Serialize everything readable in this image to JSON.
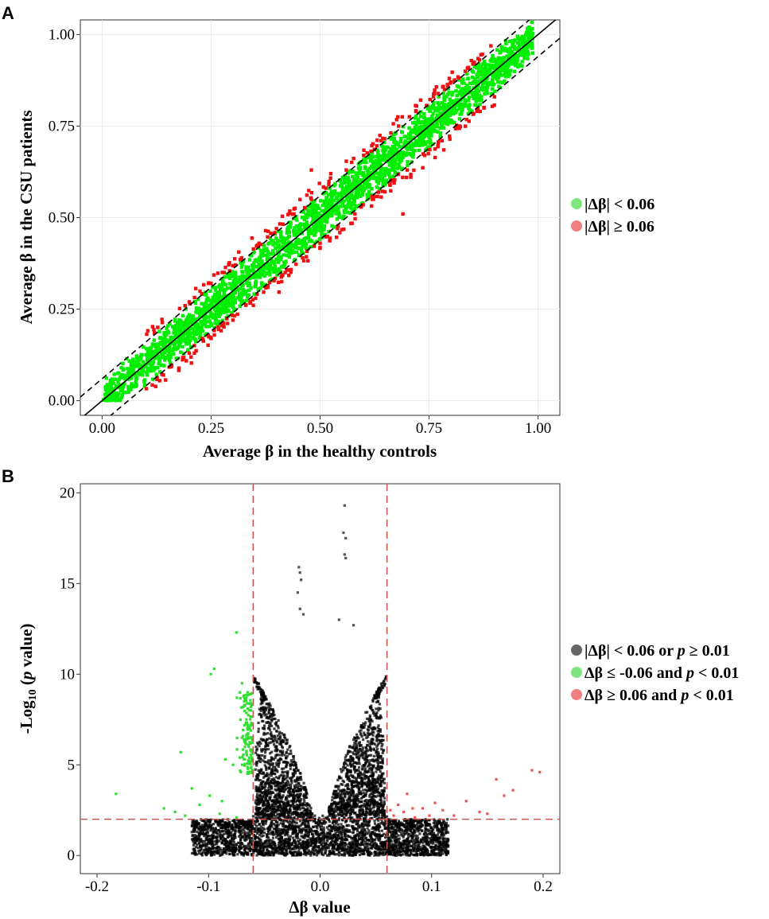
{
  "chart_data": [
    {
      "panel": "A",
      "type": "scatter",
      "xlabel": "Average β in the healthy controls",
      "ylabel": "Average β in the CSU patients",
      "xlim": [
        -0.05,
        1.05
      ],
      "ylim": [
        -0.04,
        1.04
      ],
      "xticks": [
        "0.00",
        "0.25",
        "0.50",
        "0.75",
        "1.00"
      ],
      "yticks": [
        "0.00",
        "0.25",
        "0.50",
        "0.75",
        "1.00"
      ],
      "grid": true,
      "legend_position": "right",
      "reference_lines": [
        {
          "style": "solid",
          "slope": 1,
          "intercept": 0
        },
        {
          "style": "dashed",
          "slope": 1,
          "intercept": 0.06
        },
        {
          "style": "dashed",
          "slope": 1,
          "intercept": -0.06
        }
      ],
      "series": [
        {
          "name": "|Δβ| < 0.06",
          "color": "#00ee00",
          "legend_color": "#7fe57f",
          "description_range": {
            "x": [
              0.0,
              0.99
            ],
            "abs_diff_max": 0.06
          }
        },
        {
          "name": "|Δβ| ≥ 0.06",
          "color": "#ee1111",
          "legend_color": "#f08080",
          "points": [
            [
              0.12,
              0.185
            ],
            [
              0.2,
              0.27
            ],
            [
              0.25,
              0.32
            ],
            [
              0.28,
              0.35
            ],
            [
              0.32,
              0.39
            ],
            [
              0.36,
              0.43
            ],
            [
              0.4,
              0.47
            ],
            [
              0.44,
              0.51
            ],
            [
              0.48,
              0.55
            ],
            [
              0.52,
              0.59
            ],
            [
              0.56,
              0.63
            ],
            [
              0.6,
              0.67
            ],
            [
              0.64,
              0.71
            ],
            [
              0.68,
              0.75
            ],
            [
              0.72,
              0.79
            ],
            [
              0.76,
              0.83
            ],
            [
              0.8,
              0.87
            ],
            [
              0.84,
              0.91
            ],
            [
              0.2,
              0.13
            ],
            [
              0.25,
              0.17
            ],
            [
              0.3,
              0.22
            ],
            [
              0.34,
              0.27
            ],
            [
              0.38,
              0.31
            ],
            [
              0.42,
              0.35
            ],
            [
              0.46,
              0.39
            ],
            [
              0.5,
              0.43
            ],
            [
              0.54,
              0.47
            ],
            [
              0.58,
              0.51
            ],
            [
              0.62,
              0.55
            ],
            [
              0.66,
              0.59
            ],
            [
              0.7,
              0.63
            ],
            [
              0.74,
              0.67
            ],
            [
              0.78,
              0.71
            ],
            [
              0.82,
              0.75
            ],
            [
              0.86,
              0.79
            ],
            [
              0.9,
              0.83
            ],
            [
              0.69,
              0.51
            ],
            [
              0.23,
              0.17
            ],
            [
              0.48,
              0.63
            ]
          ]
        }
      ]
    },
    {
      "panel": "B",
      "type": "scatter",
      "xlabel": "Δβ value",
      "ylabel": "-Log10 (p value)",
      "xlim": [
        -0.215,
        0.215
      ],
      "ylim": [
        -1,
        20.5
      ],
      "xticks": [
        "-0.2",
        "-0.1",
        "0.0",
        "0.1",
        "0.2"
      ],
      "yticks": [
        "0",
        "5",
        "10",
        "15",
        "20"
      ],
      "grid": false,
      "legend_position": "right",
      "threshold_lines": [
        {
          "axis": "x",
          "value": -0.06,
          "style": "dashed",
          "color": "#cc5555"
        },
        {
          "axis": "x",
          "value": 0.06,
          "style": "dashed",
          "color": "#cc5555"
        },
        {
          "axis": "y",
          "value": 2,
          "style": "dashed",
          "color": "#cc5555"
        }
      ],
      "series": [
        {
          "name": "|Δβ| < 0.06 or p ≥ 0.01",
          "color": "#000000",
          "legend_color": "#666666",
          "notable_points": [
            [
              0.022,
              19.3
            ],
            [
              0.021,
              17.8
            ],
            [
              0.023,
              17.5
            ],
            [
              0.022,
              16.6
            ],
            [
              0.023,
              16.4
            ],
            [
              -0.019,
              15.9
            ],
            [
              -0.018,
              15.6
            ],
            [
              -0.017,
              15.2
            ],
            [
              -0.02,
              14.5
            ],
            [
              -0.018,
              13.6
            ],
            [
              -0.015,
              13.3
            ],
            [
              0.017,
              13.0
            ],
            [
              0.03,
              12.7
            ]
          ]
        },
        {
          "name": "Δβ ≤ -0.06 and p < 0.01",
          "color": "#33dd33",
          "legend_color": "#7fe57f",
          "points": [
            [
              -0.075,
              12.3
            ],
            [
              -0.095,
              10.3
            ],
            [
              -0.098,
              10.0
            ],
            [
              -0.07,
              9.5
            ],
            [
              -0.065,
              9.0
            ],
            [
              -0.068,
              8.5
            ],
            [
              -0.062,
              8.0
            ],
            [
              -0.066,
              7.5
            ],
            [
              -0.063,
              7.0
            ],
            [
              -0.07,
              6.5
            ],
            [
              -0.064,
              6.0
            ],
            [
              -0.125,
              5.7
            ],
            [
              -0.085,
              5.3
            ],
            [
              -0.078,
              5.0
            ],
            [
              -0.071,
              4.6
            ],
            [
              -0.183,
              3.4
            ],
            [
              -0.115,
              3.7
            ],
            [
              -0.099,
              3.3
            ],
            [
              -0.088,
              3.0
            ],
            [
              -0.108,
              2.8
            ],
            [
              -0.14,
              2.6
            ],
            [
              -0.13,
              2.4
            ],
            [
              -0.121,
              2.2
            ],
            [
              -0.09,
              2.3
            ],
            [
              -0.075,
              2.1
            ]
          ]
        },
        {
          "name": "Δβ ≥  0.06 and p < 0.01",
          "color": "#ee5555",
          "legend_color": "#f08080",
          "points": [
            [
              0.19,
              4.7
            ],
            [
              0.197,
              4.6
            ],
            [
              0.173,
              3.6
            ],
            [
              0.158,
              4.2
            ],
            [
              0.165,
              3.3
            ],
            [
              0.143,
              2.4
            ],
            [
              0.131,
              3.0
            ],
            [
              0.11,
              2.5
            ],
            [
              0.103,
              2.9
            ],
            [
              0.098,
              2.2
            ],
            [
              0.083,
              2.6
            ],
            [
              0.075,
              2.4
            ],
            [
              0.07,
              2.8
            ],
            [
              0.066,
              2.2
            ],
            [
              0.078,
              3.4
            ],
            [
              0.092,
              2.6
            ],
            [
              0.12,
              2.2
            ],
            [
              0.15,
              2.3
            ],
            [
              0.063,
              2.5
            ],
            [
              0.085,
              2.1
            ]
          ]
        }
      ]
    }
  ]
}
